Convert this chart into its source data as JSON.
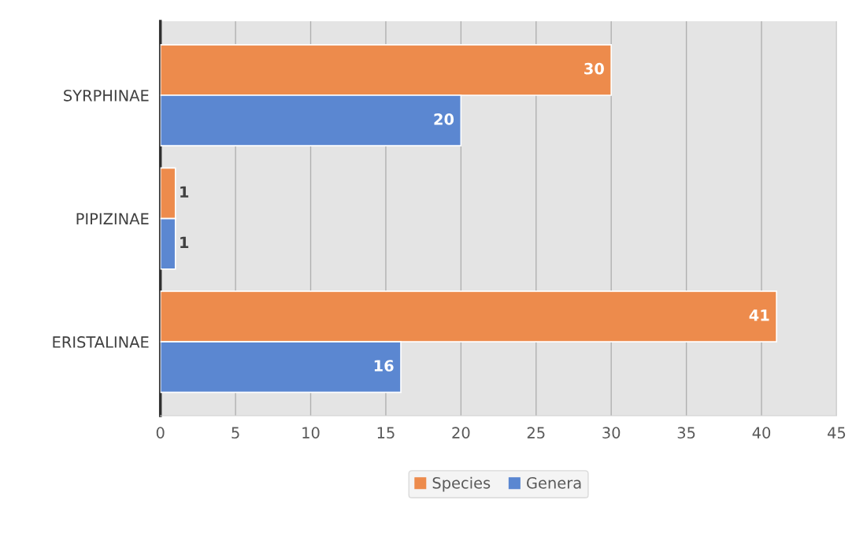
{
  "chart_data": {
    "type": "bar",
    "orientation": "horizontal",
    "categories": [
      "SYRPHINAE",
      "PIPIZINAE",
      "ERISTALINAE"
    ],
    "series": [
      {
        "name": "Species",
        "color": "#ed8b4c",
        "values": [
          30,
          1,
          41
        ]
      },
      {
        "name": "Genera",
        "color": "#5b87d1",
        "values": [
          20,
          1,
          16
        ]
      }
    ],
    "xlim": [
      0,
      45
    ],
    "xticks": [
      0,
      5,
      10,
      15,
      20,
      25,
      30,
      35,
      40,
      45
    ],
    "grid": "x",
    "legend": "bottom",
    "data_labels": true
  }
}
